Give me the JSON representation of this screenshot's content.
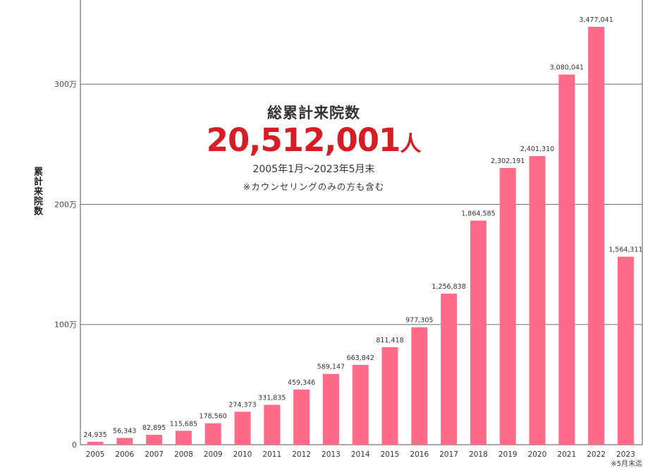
{
  "chart_data": {
    "type": "bar",
    "ylabel": "累計来院数",
    "ylim": [
      0,
      3700000
    ],
    "yticks": [
      {
        "value": 0,
        "label": "0"
      },
      {
        "value": 1000000,
        "label": "100万"
      },
      {
        "value": 2000000,
        "label": "200万"
      },
      {
        "value": 3000000,
        "label": "300万"
      }
    ],
    "grid": true,
    "bar_color": "#ff6b88",
    "categories": [
      "2005",
      "2006",
      "2007",
      "2008",
      "2009",
      "2010",
      "2011",
      "2012",
      "2013",
      "2014",
      "2015",
      "2016",
      "2017",
      "2018",
      "2019",
      "2020",
      "2021",
      "2022",
      "2023"
    ],
    "values": [
      24935,
      56343,
      82895,
      115685,
      178560,
      274373,
      331835,
      459346,
      589147,
      663842,
      811418,
      977305,
      1256838,
      1864585,
      2302191,
      2401310,
      3080041,
      3477041,
      1564311
    ],
    "value_labels": [
      "24,935",
      "56,343",
      "82,895",
      "115,685",
      "178,560",
      "274,373",
      "331,835",
      "459,346",
      "589,147",
      "663,842",
      "811,418",
      "977,305",
      "1,256,838",
      "1,864,585",
      "2,302,191",
      "2,401,310",
      "3,080,041",
      "3,477,041",
      "1,564,311"
    ]
  },
  "summary": {
    "headline": "総累計来院数",
    "total": "20,512,001",
    "unit": "人",
    "period": "2005年1月〜2023年5月末",
    "note": "※カウンセリングのみの方も含む",
    "accent_color": "#d71d24"
  },
  "footnote": "※5月末迄"
}
